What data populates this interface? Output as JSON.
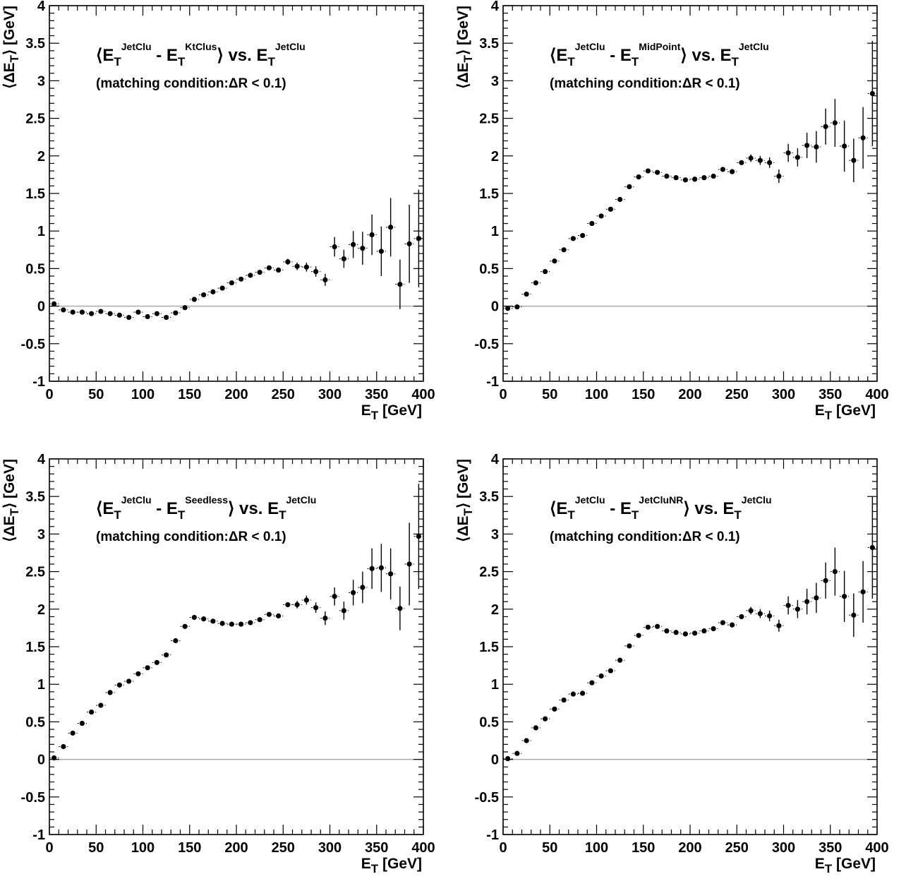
{
  "figure": {
    "annotation": "(matching condition:ΔR < 0.1)",
    "xlabel_main": "E",
    "xlabel_sub": "T",
    "xlabel_unit": " [GeV]",
    "ylabel_prefix": "⟨ΔE",
    "ylabel_sub": "T",
    "ylabel_suffix": "⟩ [GeV]"
  },
  "chart_data": [
    {
      "type": "scatter",
      "title_parts": {
        "lead": "⟨E",
        "sup1": "JetClu",
        "mid": " - E",
        "sup2": "KtClus",
        "tail": "⟩ vs. E",
        "sup3": "JetClu"
      },
      "xlim": [
        0,
        400
      ],
      "ylim": [
        -1,
        4
      ],
      "x": [
        5,
        15,
        25,
        35,
        45,
        55,
        65,
        75,
        85,
        95,
        105,
        115,
        125,
        135,
        145,
        155,
        165,
        175,
        185,
        195,
        205,
        215,
        225,
        235,
        245,
        255,
        265,
        275,
        285,
        295,
        305,
        315,
        325,
        335,
        345,
        355,
        365,
        375,
        385,
        395
      ],
      "y": [
        0.03,
        -0.05,
        -0.08,
        -0.08,
        -0.1,
        -0.07,
        -0.1,
        -0.12,
        -0.15,
        -0.08,
        -0.14,
        -0.1,
        -0.15,
        -0.09,
        -0.02,
        0.09,
        0.15,
        0.19,
        0.24,
        0.31,
        0.36,
        0.41,
        0.45,
        0.51,
        0.48,
        0.59,
        0.53,
        0.52,
        0.46,
        0.35,
        0.79,
        0.63,
        0.82,
        0.77,
        0.95,
        0.73,
        1.05,
        0.29,
        0.83,
        0.9
      ],
      "err": [
        0.01,
        0.01,
        0.01,
        0.01,
        0.01,
        0.01,
        0.01,
        0.01,
        0.01,
        0.01,
        0.01,
        0.01,
        0.01,
        0.01,
        0.02,
        0.02,
        0.02,
        0.02,
        0.02,
        0.02,
        0.02,
        0.02,
        0.03,
        0.03,
        0.03,
        0.04,
        0.05,
        0.06,
        0.07,
        0.08,
        0.13,
        0.12,
        0.18,
        0.22,
        0.27,
        0.33,
        0.39,
        0.33,
        0.52,
        0.65
      ]
    },
    {
      "type": "scatter",
      "title_parts": {
        "lead": "⟨E",
        "sup1": "JetClu",
        "mid": " - E",
        "sup2": "MidPoint",
        "tail": "⟩ vs. E",
        "sup3": "JetClu"
      },
      "xlim": [
        0,
        400
      ],
      "ylim": [
        -1,
        4
      ],
      "x": [
        5,
        15,
        25,
        35,
        45,
        55,
        65,
        75,
        85,
        95,
        105,
        115,
        125,
        135,
        145,
        155,
        165,
        175,
        185,
        195,
        205,
        215,
        225,
        235,
        245,
        255,
        265,
        275,
        285,
        295,
        305,
        315,
        325,
        335,
        345,
        355,
        365,
        375,
        385,
        395
      ],
      "y": [
        -0.03,
        -0.01,
        0.16,
        0.31,
        0.46,
        0.6,
        0.75,
        0.9,
        0.94,
        1.1,
        1.2,
        1.29,
        1.42,
        1.59,
        1.72,
        1.8,
        1.78,
        1.73,
        1.71,
        1.68,
        1.69,
        1.71,
        1.73,
        1.82,
        1.79,
        1.91,
        1.97,
        1.94,
        1.91,
        1.73,
        2.04,
        1.98,
        2.14,
        2.12,
        2.39,
        2.44,
        2.13,
        1.94,
        2.24,
        2.83
      ],
      "err": [
        0.01,
        0.01,
        0.01,
        0.01,
        0.01,
        0.01,
        0.01,
        0.01,
        0.01,
        0.01,
        0.01,
        0.01,
        0.01,
        0.01,
        0.01,
        0.01,
        0.01,
        0.01,
        0.01,
        0.01,
        0.02,
        0.02,
        0.02,
        0.02,
        0.03,
        0.03,
        0.05,
        0.06,
        0.07,
        0.09,
        0.12,
        0.12,
        0.17,
        0.21,
        0.24,
        0.32,
        0.34,
        0.29,
        0.41,
        0.7
      ]
    },
    {
      "type": "scatter",
      "title_parts": {
        "lead": "⟨E",
        "sup1": "JetClu",
        "mid": " - E",
        "sup2": "Seedless",
        "tail": "⟩ vs. E",
        "sup3": "JetClu"
      },
      "xlim": [
        0,
        400
      ],
      "ylim": [
        -1,
        4
      ],
      "x": [
        5,
        15,
        25,
        35,
        45,
        55,
        65,
        75,
        85,
        95,
        105,
        115,
        125,
        135,
        145,
        155,
        165,
        175,
        185,
        195,
        205,
        215,
        225,
        235,
        245,
        255,
        265,
        275,
        285,
        295,
        305,
        315,
        325,
        335,
        345,
        355,
        365,
        375,
        385,
        395
      ],
      "y": [
        0.02,
        0.17,
        0.35,
        0.48,
        0.63,
        0.72,
        0.89,
        0.99,
        1.04,
        1.14,
        1.22,
        1.29,
        1.39,
        1.58,
        1.77,
        1.89,
        1.87,
        1.84,
        1.81,
        1.8,
        1.8,
        1.82,
        1.86,
        1.93,
        1.91,
        2.06,
        2.06,
        2.12,
        2.02,
        1.88,
        2.17,
        1.98,
        2.22,
        2.29,
        2.54,
        2.55,
        2.47,
        2.01,
        2.6,
        2.97
      ],
      "err": [
        0.01,
        0.01,
        0.01,
        0.01,
        0.01,
        0.01,
        0.01,
        0.01,
        0.01,
        0.01,
        0.01,
        0.01,
        0.01,
        0.01,
        0.01,
        0.01,
        0.01,
        0.01,
        0.01,
        0.01,
        0.02,
        0.02,
        0.02,
        0.02,
        0.03,
        0.03,
        0.05,
        0.06,
        0.07,
        0.09,
        0.12,
        0.12,
        0.17,
        0.21,
        0.27,
        0.32,
        0.34,
        0.29,
        0.55,
        0.7
      ]
    },
    {
      "type": "scatter",
      "title_parts": {
        "lead": "⟨E",
        "sup1": "JetClu",
        "mid": " - E",
        "sup2": "JetCluNR",
        "tail": "⟩ vs. E",
        "sup3": "JetClu"
      },
      "xlim": [
        0,
        400
      ],
      "ylim": [
        -1,
        4
      ],
      "x": [
        5,
        15,
        25,
        35,
        45,
        55,
        65,
        75,
        85,
        95,
        105,
        115,
        125,
        135,
        145,
        155,
        165,
        175,
        185,
        195,
        205,
        215,
        225,
        235,
        245,
        255,
        265,
        275,
        285,
        295,
        305,
        315,
        325,
        335,
        345,
        355,
        365,
        375,
        385,
        395
      ],
      "y": [
        0.01,
        0.08,
        0.25,
        0.42,
        0.54,
        0.67,
        0.79,
        0.87,
        0.88,
        1.02,
        1.11,
        1.18,
        1.32,
        1.51,
        1.65,
        1.76,
        1.77,
        1.71,
        1.69,
        1.67,
        1.68,
        1.71,
        1.74,
        1.82,
        1.79,
        1.9,
        1.98,
        1.94,
        1.91,
        1.78,
        2.05,
        2.0,
        2.1,
        2.15,
        2.38,
        2.5,
        2.17,
        1.92,
        2.23,
        2.82
      ],
      "err": [
        0.01,
        0.01,
        0.01,
        0.01,
        0.01,
        0.01,
        0.01,
        0.01,
        0.01,
        0.01,
        0.01,
        0.01,
        0.01,
        0.01,
        0.01,
        0.01,
        0.01,
        0.01,
        0.01,
        0.01,
        0.02,
        0.02,
        0.02,
        0.02,
        0.03,
        0.03,
        0.05,
        0.06,
        0.07,
        0.08,
        0.12,
        0.12,
        0.17,
        0.2,
        0.24,
        0.32,
        0.34,
        0.29,
        0.41,
        0.68
      ]
    }
  ]
}
